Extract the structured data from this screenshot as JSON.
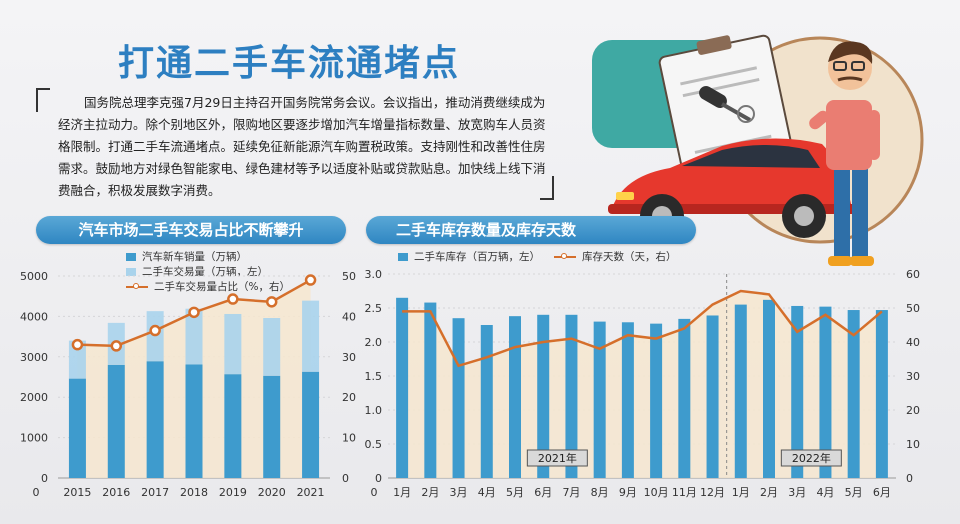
{
  "header": {
    "title": "打通二手车流通堵点",
    "intro": "国务院总理李克强7月29日主持召开国务院常务会议。会议指出，推动消费继续成为经济主拉动力。除个别地区外，限购地区要逐步增加汽车增量指标数量、放宽购车人员资格限制。打通二手车流通堵点。延续免征新能源汽车购置税政策。支持刚性和改善性住房需求。鼓励地方对绿色智能家电、绿色建材等予以适度补贴或贷款贴息。加快线上线下消费融合，积极发展数字消费。"
  },
  "colors": {
    "title_blue": "#2d7fc1",
    "bar_dark": "#3e9bcd",
    "bar_light": "#a9d3ec",
    "line_orange": "#d56f2b",
    "area_fill": "#f6e6cf"
  },
  "chart_data": [
    {
      "type": "bar",
      "title": "汽车市场二手车交易占比不断攀升",
      "categories": [
        "2015",
        "2016",
        "2017",
        "2018",
        "2019",
        "2020",
        "2021"
      ],
      "series": [
        {
          "name": "汽车新车销量（万辆）",
          "axis": "left",
          "values": [
            2460,
            2800,
            2890,
            2810,
            2570,
            2530,
            2630
          ]
        },
        {
          "name": "二手车交易量（万辆，左）",
          "axis": "left",
          "values": [
            940,
            1040,
            1240,
            1380,
            1490,
            1430,
            1760
          ]
        },
        {
          "name": "二手车交易量占比（%，右）",
          "axis": "right",
          "type": "line",
          "values": [
            33,
            32.7,
            36.5,
            41,
            44.3,
            43.6,
            49
          ]
        }
      ],
      "left_axis": {
        "ylim": [
          0,
          5000
        ],
        "ticks": [
          0,
          1000,
          2000,
          3000,
          4000,
          5000
        ]
      },
      "right_axis": {
        "ylim": [
          0,
          50
        ],
        "ticks": [
          0,
          10,
          20,
          30,
          40,
          50
        ]
      }
    },
    {
      "type": "bar",
      "title": "二手车库存数量及库存天数",
      "categories": [
        "1月",
        "2月",
        "3月",
        "4月",
        "5月",
        "6月",
        "7月",
        "8月",
        "9月",
        "10月",
        "11月",
        "12月",
        "1月",
        "2月",
        "3月",
        "4月",
        "5月",
        "6月"
      ],
      "year_labels": [
        {
          "label": "2021年",
          "from": 0,
          "to": 11
        },
        {
          "label": "2022年",
          "from": 12,
          "to": 17
        }
      ],
      "series": [
        {
          "name": "二手车库存（百万辆，左）",
          "axis": "left",
          "values": [
            2.65,
            2.58,
            2.35,
            2.25,
            2.38,
            2.4,
            2.4,
            2.3,
            2.29,
            2.27,
            2.34,
            2.39,
            2.55,
            2.62,
            2.53,
            2.52,
            2.47,
            2.47
          ]
        },
        {
          "name": "库存天数（天，右）",
          "axis": "right",
          "type": "line",
          "values": [
            49,
            49,
            33,
            35.5,
            38.5,
            40,
            41,
            38,
            42,
            41,
            44,
            51,
            55,
            54,
            43,
            48,
            42,
            49
          ]
        }
      ],
      "left_axis": {
        "ylim": [
          0,
          3.0
        ],
        "ticks": [
          "0",
          "0.5",
          "1.0",
          "1.5",
          "2.0",
          "2.5",
          "3.0"
        ]
      },
      "right_axis": {
        "ylim": [
          0,
          60
        ],
        "ticks": [
          0,
          10,
          20,
          30,
          40,
          50,
          60
        ]
      }
    }
  ]
}
